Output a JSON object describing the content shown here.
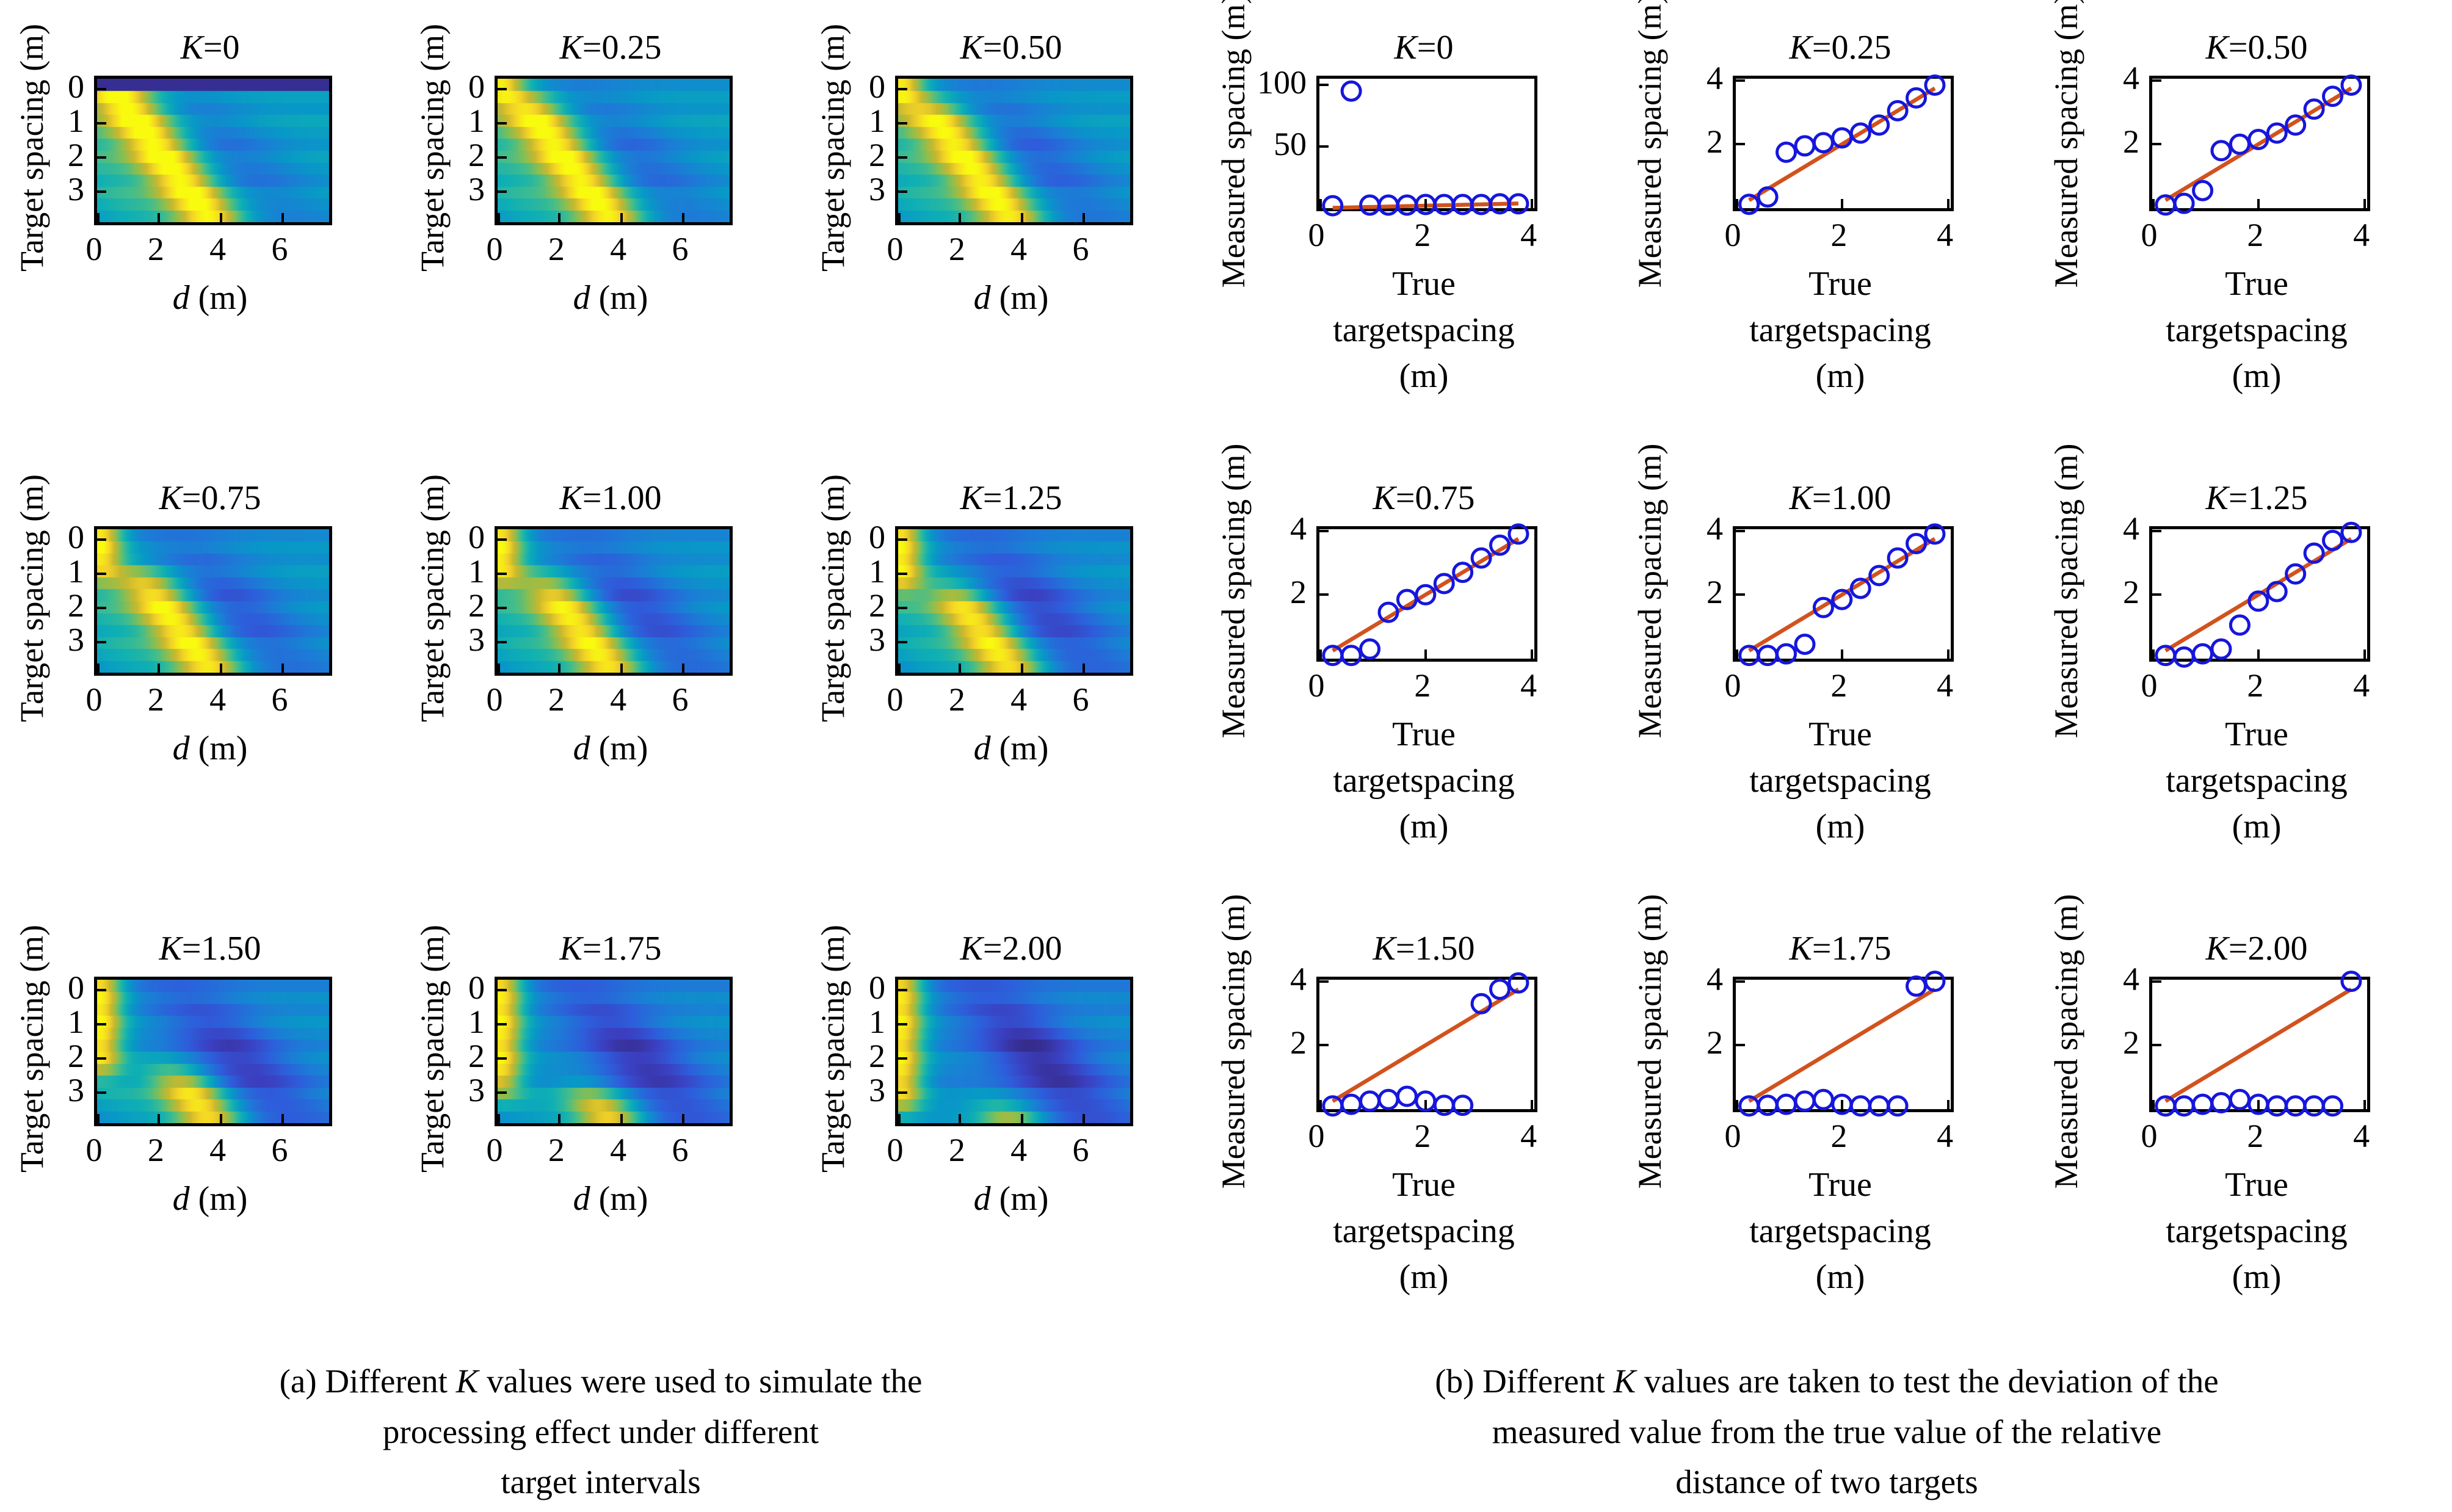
{
  "chart_data": {
    "panel_a": {
      "type": "heatmap",
      "ylabel": "Target spacing (m)",
      "xlabel_segments": [
        [
          "d",
          true
        ],
        [
          " (m)",
          false
        ]
      ],
      "x_ticks": [
        0,
        2,
        4,
        6
      ],
      "y_ticks": [
        0,
        1,
        2,
        3
      ],
      "x_range": [
        0,
        7.5
      ],
      "y_range": [
        -0.3,
        3.9
      ],
      "grid_rows": 12,
      "colormap_name": "parula",
      "colormap_stops": [
        "#352a87",
        "#3b3fc0",
        "#2e5ddb",
        "#1c7cd6",
        "#0898c7",
        "#0fb0b4",
        "#43bd8c",
        "#8cbe4f",
        "#c9b82e",
        "#f3d327",
        "#f9fb0e"
      ],
      "ridge_model": {
        "intercept": 0.55,
        "slope": 0.82,
        "sigma": 0.78,
        "dip_intercept": 2.8,
        "dip_slope": 0.9,
        "dip_sigma": 1.15
      },
      "subplots": [
        {
          "title": "K=0",
          "K": 0,
          "resolve_threshold": -0.6,
          "flat_low_top_row": true
        },
        {
          "title": "K=0.25",
          "K": 0.25,
          "resolve_threshold": 0.15
        },
        {
          "title": "K=0.50",
          "K": 0.5,
          "resolve_threshold": 0.35
        },
        {
          "title": "K=0.75",
          "K": 0.75,
          "resolve_threshold": 1.0
        },
        {
          "title": "K=1.00",
          "K": 1.0,
          "resolve_threshold": 1.2
        },
        {
          "title": "K=1.25",
          "K": 1.25,
          "resolve_threshold": 1.45
        },
        {
          "title": "K=1.50",
          "K": 1.5,
          "resolve_threshold": 2.4
        },
        {
          "title": "K=1.75",
          "K": 1.75,
          "resolve_threshold": 3.0
        },
        {
          "title": "K=2.00",
          "K": 2.0,
          "resolve_threshold": 3.5
        }
      ],
      "caption_lines": [
        [
          [
            "(a) Different ",
            false
          ],
          [
            "K",
            true
          ],
          [
            " values were used to simulate the",
            false
          ]
        ],
        [
          [
            "processing effect under different",
            false
          ]
        ],
        [
          [
            "target intervals",
            false
          ]
        ]
      ]
    },
    "panel_b": {
      "type": "scatter",
      "ylabel": "Measured spacing (m)",
      "xlabel_lines": [
        "True target",
        "spacing (m)"
      ],
      "x_ticks": [
        0,
        2,
        4
      ],
      "x_range": [
        0,
        4.05
      ],
      "marker_color": "#1616dd",
      "line_color": "#d2521e",
      "identity_line": {
        "x": [
          0.25,
          3.75
        ],
        "y": [
          0.25,
          3.75
        ]
      },
      "points_x": [
        0.25,
        0.6,
        0.95,
        1.3,
        1.65,
        2.0,
        2.35,
        2.7,
        3.05,
        3.4,
        3.75
      ],
      "subplots": [
        {
          "title": "K=0",
          "y_ticks": [
            50,
            100
          ],
          "y_range": [
            0,
            105
          ],
          "points_y": [
            2,
            95,
            2.5,
            2.5,
            2.5,
            3,
            3,
            3,
            3,
            3.5,
            3.5
          ]
        },
        {
          "title": "K=0.25",
          "y_ticks": [
            2,
            4
          ],
          "y_range": [
            0,
            4.05
          ],
          "points_y": [
            0.12,
            0.35,
            1.75,
            1.95,
            2.05,
            2.2,
            2.35,
            2.6,
            3.05,
            3.45,
            3.85
          ]
        },
        {
          "title": "K=0.50",
          "y_ticks": [
            2,
            4
          ],
          "y_range": [
            0,
            4.05
          ],
          "points_y": [
            0.1,
            0.15,
            0.55,
            1.8,
            2.0,
            2.15,
            2.35,
            2.6,
            3.1,
            3.5,
            3.85
          ]
        },
        {
          "title": "K=0.75",
          "y_ticks": [
            2,
            4
          ],
          "y_range": [
            0,
            4.05
          ],
          "points_y": [
            0.1,
            0.1,
            0.3,
            1.45,
            1.85,
            2.0,
            2.35,
            2.7,
            3.15,
            3.55,
            3.9
          ]
        },
        {
          "title": "K=1.00",
          "y_ticks": [
            2,
            4
          ],
          "y_range": [
            0,
            4.05
          ],
          "points_y": [
            0.1,
            0.1,
            0.15,
            0.45,
            1.6,
            1.85,
            2.2,
            2.6,
            3.15,
            3.6,
            3.9
          ]
        },
        {
          "title": "K=1.25",
          "y_ticks": [
            2,
            4
          ],
          "y_range": [
            0,
            4.05
          ],
          "points_y": [
            0.1,
            0.05,
            0.15,
            0.3,
            1.05,
            1.8,
            2.1,
            2.65,
            3.3,
            3.7,
            3.95
          ]
        },
        {
          "title": "K=1.50",
          "y_ticks": [
            2,
            4
          ],
          "y_range": [
            0,
            4.05
          ],
          "points_y": [
            0.1,
            0.15,
            0.25,
            0.3,
            0.4,
            0.25,
            0.12,
            0.12,
            3.3,
            3.75,
            3.95
          ]
        },
        {
          "title": "K=1.75",
          "y_ticks": [
            2,
            4
          ],
          "y_range": [
            0,
            4.05
          ],
          "points_y": [
            0.1,
            0.12,
            0.15,
            0.25,
            0.3,
            0.15,
            0.1,
            0.1,
            0.1,
            3.85,
            4.0
          ]
        },
        {
          "title": "K=2.00",
          "y_ticks": [
            2,
            4
          ],
          "y_range": [
            0,
            4.05
          ],
          "points_y": [
            0.1,
            0.1,
            0.15,
            0.2,
            0.3,
            0.15,
            0.1,
            0.1,
            0.1,
            0.1,
            4.0
          ]
        }
      ],
      "caption_lines": [
        [
          [
            "(b) Different ",
            false
          ],
          [
            "K",
            true
          ],
          [
            " values are taken to test the deviation of the",
            false
          ]
        ],
        [
          [
            "measured value from the true value of the relative",
            false
          ]
        ],
        [
          [
            "distance of two targets",
            false
          ]
        ]
      ]
    }
  }
}
